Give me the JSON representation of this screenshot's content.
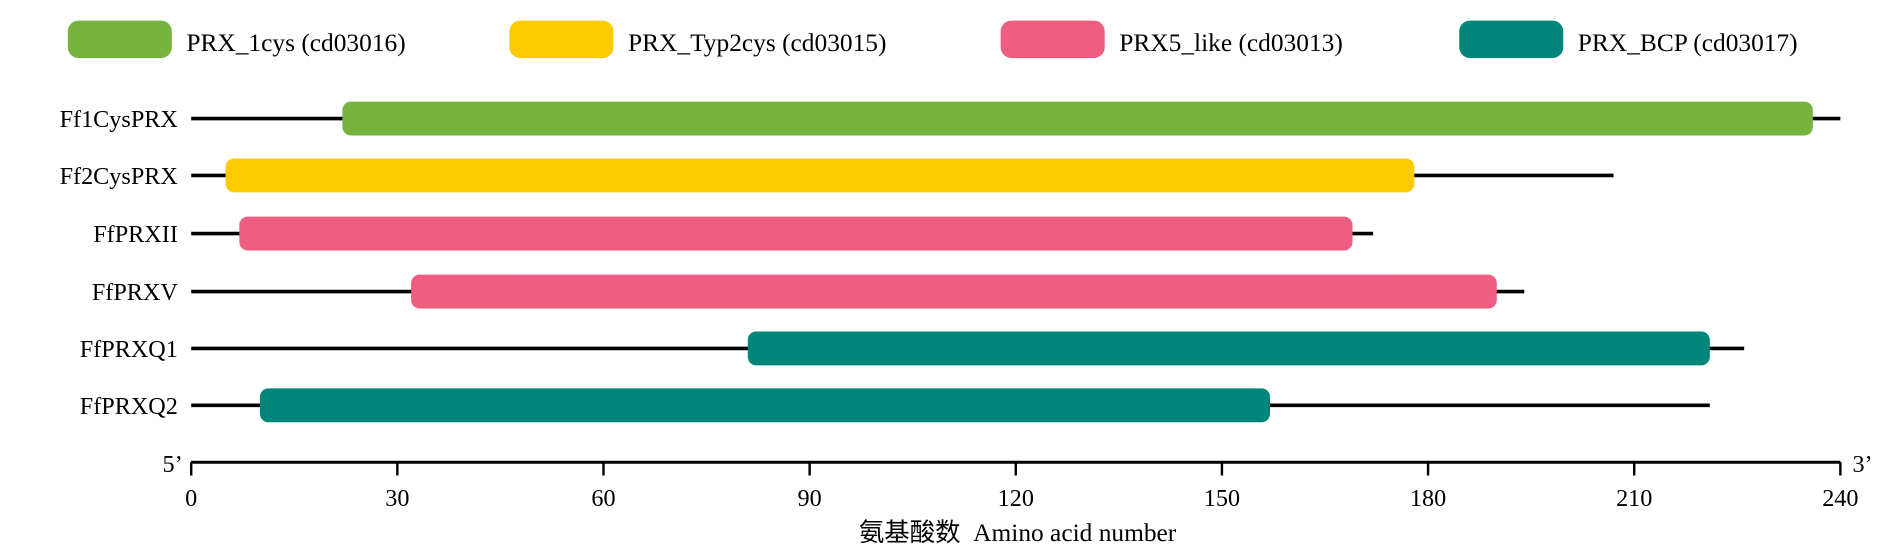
{
  "chart_data": {
    "type": "bar",
    "subtype": "protein-domain-diagram",
    "xlabel": "氨基酸数  Amino acid number",
    "xlim": [
      0,
      240
    ],
    "xticks": [
      0,
      30,
      60,
      90,
      120,
      150,
      180,
      210,
      240
    ],
    "end_labels": {
      "left": "5’",
      "right": "3’"
    },
    "legend": [
      {
        "name": "PRX_1cys (cd03016)",
        "color": "#76b33f"
      },
      {
        "name": "PRX_Typ2cys (cd03015)",
        "color": "#fbcb00"
      },
      {
        "name": "PRX5_like (cd03013)",
        "color": "#ef5d80"
      },
      {
        "name": "PRX_BCP (cd03017)",
        "color": "#00857b"
      }
    ],
    "legend_placement": "top",
    "proteins": [
      {
        "name": "Ff1CysPRX",
        "length": 240,
        "domain": 0,
        "start": 22,
        "end": 236
      },
      {
        "name": "Ff2CysPRX",
        "length": 207,
        "domain": 1,
        "start": 5,
        "end": 178
      },
      {
        "name": "FfPRXII",
        "length": 172,
        "domain": 2,
        "start": 7,
        "end": 169
      },
      {
        "name": "FfPRXV",
        "length": 194,
        "domain": 2,
        "start": 32,
        "end": 190
      },
      {
        "name": "FfPRXQ1",
        "length": 226,
        "domain": 3,
        "start": 81,
        "end": 221
      },
      {
        "name": "FfPRXQ2",
        "length": 221,
        "domain": 3,
        "start": 10,
        "end": 157
      }
    ]
  }
}
